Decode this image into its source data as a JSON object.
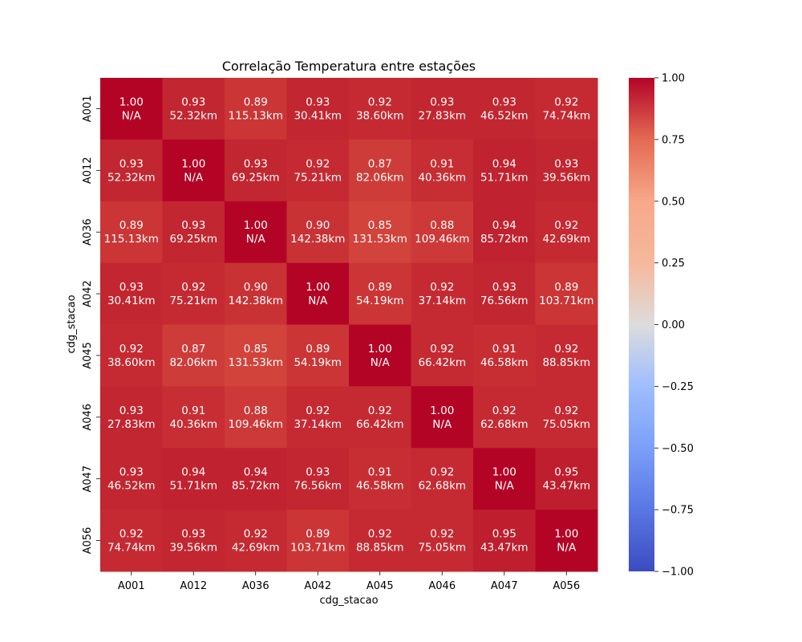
{
  "chart_data": {
    "type": "heatmap",
    "title": "Correlação Temperatura entre estações",
    "xlabel": "cdg_stacao",
    "ylabel": "cdg_stacao",
    "x_categories": [
      "A001",
      "A012",
      "A036",
      "A042",
      "A045",
      "A046",
      "A047",
      "A056"
    ],
    "y_categories": [
      "A001",
      "A012",
      "A036",
      "A042",
      "A045",
      "A046",
      "A047",
      "A056"
    ],
    "values": [
      [
        1.0,
        0.93,
        0.89,
        0.93,
        0.92,
        0.93,
        0.93,
        0.92
      ],
      [
        0.93,
        1.0,
        0.93,
        0.92,
        0.87,
        0.91,
        0.94,
        0.93
      ],
      [
        0.89,
        0.93,
        1.0,
        0.9,
        0.85,
        0.88,
        0.94,
        0.92
      ],
      [
        0.93,
        0.92,
        0.9,
        1.0,
        0.89,
        0.92,
        0.93,
        0.89
      ],
      [
        0.92,
        0.87,
        0.85,
        0.89,
        1.0,
        0.92,
        0.91,
        0.92
      ],
      [
        0.93,
        0.91,
        0.88,
        0.92,
        0.92,
        1.0,
        0.92,
        0.92
      ],
      [
        0.93,
        0.94,
        0.94,
        0.93,
        0.91,
        0.92,
        1.0,
        0.95
      ],
      [
        0.92,
        0.93,
        0.92,
        0.89,
        0.92,
        0.92,
        0.95,
        1.0
      ]
    ],
    "distances": [
      [
        "N/A",
        "52.32km",
        "115.13km",
        "30.41km",
        "38.60km",
        "27.83km",
        "46.52km",
        "74.74km"
      ],
      [
        "52.32km",
        "N/A",
        "69.25km",
        "75.21km",
        "82.06km",
        "40.36km",
        "51.71km",
        "39.56km"
      ],
      [
        "115.13km",
        "69.25km",
        "N/A",
        "142.38km",
        "131.53km",
        "109.46km",
        "85.72km",
        "42.69km"
      ],
      [
        "30.41km",
        "75.21km",
        "142.38km",
        "N/A",
        "54.19km",
        "37.14km",
        "76.56km",
        "103.71km"
      ],
      [
        "38.60km",
        "82.06km",
        "131.53km",
        "54.19km",
        "N/A",
        "66.42km",
        "46.58km",
        "88.85km"
      ],
      [
        "27.83km",
        "40.36km",
        "109.46km",
        "37.14km",
        "66.42km",
        "N/A",
        "62.68km",
        "75.05km"
      ],
      [
        "46.52km",
        "51.71km",
        "85.72km",
        "76.56km",
        "46.58km",
        "62.68km",
        "N/A",
        "43.47km"
      ],
      [
        "74.74km",
        "39.56km",
        "42.69km",
        "103.71km",
        "88.85km",
        "75.05km",
        "43.47km",
        "N/A"
      ]
    ],
    "colormap": "coolwarm",
    "vmin": -1.0,
    "vmax": 1.0,
    "colorbar_ticks": [
      -1.0,
      -0.75,
      -0.5,
      -0.25,
      0.0,
      0.25,
      0.5,
      0.75,
      1.0
    ],
    "colorbar_tick_labels": [
      "−1.00",
      "−0.75",
      "−0.50",
      "−0.25",
      "0.00",
      "0.25",
      "0.50",
      "0.75",
      "1.00"
    ],
    "grid": false,
    "colorbar_placement": "right"
  }
}
